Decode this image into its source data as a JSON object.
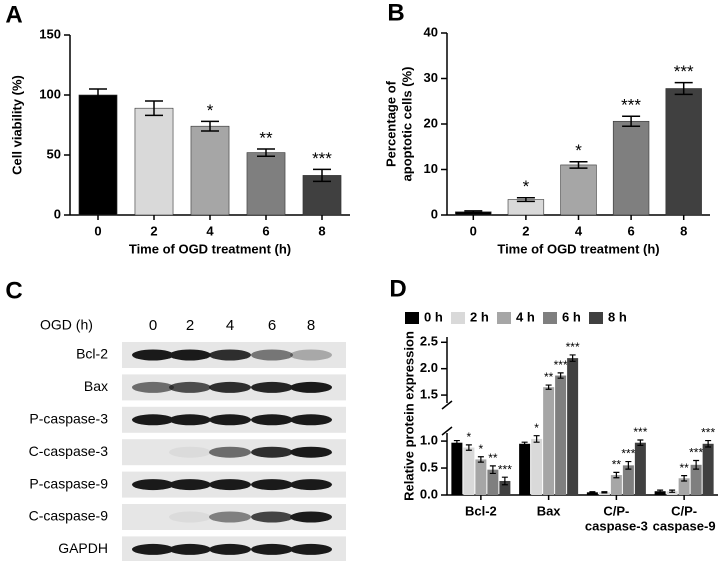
{
  "chart_data": [
    {
      "type": "bar",
      "panel_label": "A",
      "ylabel": "Cell viability (%)",
      "xlabel": "Time of OGD treatment (h)",
      "categories": [
        "0",
        "2",
        "4",
        "6",
        "8"
      ],
      "values": [
        100,
        89,
        74,
        52,
        33
      ],
      "errors": [
        5,
        6,
        4,
        3,
        5
      ],
      "significance": [
        null,
        null,
        "*",
        "**",
        "***"
      ],
      "colors": [
        "#000000",
        "#d9d9d9",
        "#a6a6a6",
        "#7f7f7f",
        "#404040"
      ],
      "ylim": [
        0,
        150
      ],
      "yticks": [
        0,
        50,
        100,
        150
      ]
    },
    {
      "type": "bar",
      "panel_label": "B",
      "ylabel": [
        "Percentage of",
        "apoptotic cells (%)"
      ],
      "xlabel": "Time of OGD treatment (h)",
      "categories": [
        "0",
        "2",
        "4",
        "6",
        "8"
      ],
      "values": [
        0.7,
        3.4,
        11,
        20.6,
        27.8
      ],
      "errors": [
        0.2,
        0.4,
        0.7,
        1.1,
        1.3
      ],
      "significance": [
        null,
        "*",
        "*",
        "***",
        "***"
      ],
      "colors": [
        "#000000",
        "#d9d9d9",
        "#a6a6a6",
        "#7f7f7f",
        "#404040"
      ],
      "ylim": [
        0,
        40
      ],
      "yticks": [
        0,
        10,
        20,
        30,
        40
      ]
    },
    {
      "type": "grouped_bar",
      "panel_label": "D",
      "ylabel": "Relative protein expression",
      "categories": [
        [
          "Bcl-2"
        ],
        [
          "Bax"
        ],
        [
          "C/P-",
          "caspase-3"
        ],
        [
          "C/P-",
          "caspase-9"
        ]
      ],
      "series": [
        {
          "name": "0 h",
          "color": "#000000",
          "values": [
            0.97,
            0.95,
            0.05,
            0.07
          ],
          "errors": [
            0.04,
            0.03,
            0.01,
            0.02
          ],
          "significance": [
            null,
            null,
            null,
            null
          ]
        },
        {
          "name": "2 h",
          "color": "#d9d9d9",
          "values": [
            0.88,
            1.04,
            0.05,
            0.07
          ],
          "errors": [
            0.05,
            0.06,
            0.01,
            0.02
          ],
          "significance": [
            "*",
            "*",
            null,
            null
          ]
        },
        {
          "name": "4 h",
          "color": "#a6a6a6",
          "values": [
            0.66,
            1.65,
            0.37,
            0.31
          ],
          "errors": [
            0.05,
            0.04,
            0.05,
            0.05
          ],
          "significance": [
            "*",
            "**",
            "**",
            "**"
          ]
        },
        {
          "name": "6 h",
          "color": "#7f7f7f",
          "values": [
            0.47,
            1.87,
            0.55,
            0.56
          ],
          "errors": [
            0.07,
            0.05,
            0.07,
            0.08
          ],
          "significance": [
            "**",
            "***",
            "***",
            "***"
          ]
        },
        {
          "name": "8 h",
          "color": "#404040",
          "values": [
            0.26,
            2.2,
            0.97,
            0.95
          ],
          "errors": [
            0.07,
            0.06,
            0.05,
            0.06
          ],
          "significance": [
            "***",
            "***",
            "***",
            "***"
          ]
        }
      ],
      "ylim_segments": [
        [
          0,
          1.15
        ],
        [
          1.35,
          2.6
        ]
      ],
      "yticks": [
        {
          "value": 0,
          "label": "0.0"
        },
        0.5,
        {
          "value": 1,
          "label": "1.0"
        },
        1.5,
        {
          "value": 2,
          "label": "2.0"
        },
        2.5
      ]
    }
  ],
  "blot": {
    "panel_label": "C",
    "header": "OGD (h)",
    "lanes": [
      "0",
      "2",
      "4",
      "6",
      "8"
    ],
    "rows": [
      "Bcl-2",
      "Bax",
      "P-caspase-3",
      "C-caspase-3",
      "P-caspase-9",
      "C-caspase-9",
      "GAPDH"
    ]
  }
}
